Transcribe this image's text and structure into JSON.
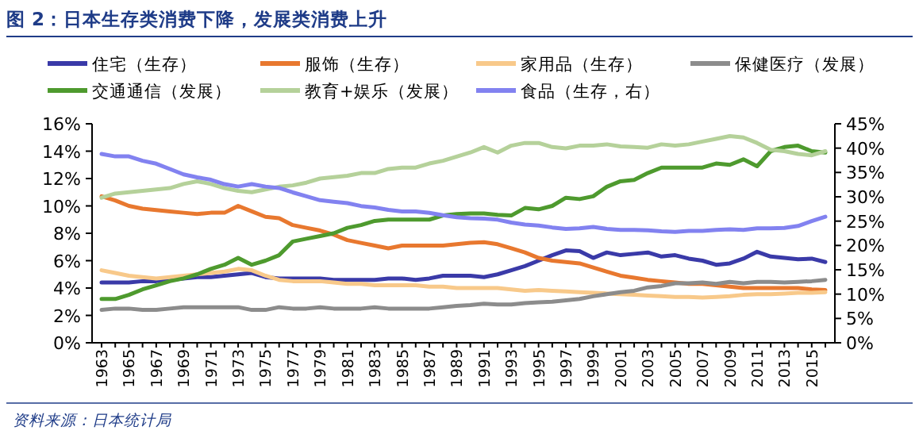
{
  "chart_data": {
    "type": "line",
    "title": "图 2：日本生存类消费下降，发展类消费上升",
    "annotations": [
      "资料来源：日本统计局"
    ],
    "categories": [
      "1963",
      null,
      "1965",
      null,
      "1967",
      null,
      "1969",
      null,
      "1971",
      null,
      "1973",
      null,
      "1975",
      null,
      "1977",
      null,
      "1979",
      null,
      "1981",
      null,
      "1983",
      null,
      "1985",
      null,
      "1987",
      null,
      "1989",
      null,
      "1991",
      null,
      "1993",
      null,
      "1995",
      null,
      "1997",
      null,
      "1999",
      null,
      "2001",
      null,
      "2003",
      null,
      "2005",
      null,
      "2007",
      null,
      "2009",
      null,
      "2011",
      null,
      "2013",
      null,
      "2015",
      null
    ],
    "ylim": [
      0,
      16
    ],
    "yticks": [
      {
        "value": 0,
        "label": "0%"
      },
      {
        "value": 2,
        "label": "2%"
      },
      {
        "value": 4,
        "label": "4%"
      },
      {
        "value": 6,
        "label": "6%"
      },
      {
        "value": 8,
        "label": "8%"
      },
      {
        "value": 10,
        "label": "10%"
      },
      {
        "value": 12,
        "label": "12%"
      },
      {
        "value": 14,
        "label": "14%"
      },
      {
        "value": 16,
        "label": "16%"
      }
    ],
    "y2lim": [
      0,
      45
    ],
    "y2ticks": [
      {
        "value": 0,
        "label": "0%"
      },
      {
        "value": 5,
        "label": "5%"
      },
      {
        "value": 10,
        "label": "10%"
      },
      {
        "value": 15,
        "label": "15%"
      },
      {
        "value": 20,
        "label": "20%"
      },
      {
        "value": 25,
        "label": "25%"
      },
      {
        "value": 30,
        "label": "30%"
      },
      {
        "value": 35,
        "label": "35%"
      },
      {
        "value": 40,
        "label": "40%"
      },
      {
        "value": 45,
        "label": "45%"
      }
    ],
    "legend": "top",
    "grid": false,
    "line_style": "solid",
    "marker": "none",
    "series": [
      {
        "name": "住宅（生存）",
        "color": "#3a3aa8",
        "values": [
          4.4,
          4.4,
          4.4,
          4.5,
          4.5,
          4.6,
          4.7,
          4.8,
          4.8,
          4.9,
          5.0,
          5.1,
          4.8,
          4.7,
          4.7,
          4.7,
          4.7,
          4.6,
          4.6,
          4.6,
          4.6,
          4.7,
          4.7,
          4.6,
          4.7,
          4.9,
          4.9,
          4.9,
          4.8,
          5.0,
          5.3,
          5.6,
          6.0,
          6.4,
          6.75,
          6.7,
          6.2,
          6.6,
          6.4,
          6.5,
          6.6,
          6.3,
          6.4,
          6.15,
          6.0,
          5.7,
          5.8,
          6.15,
          6.65,
          6.3,
          6.2,
          6.1,
          6.15,
          5.9
        ]
      },
      {
        "name": "服饰（生存）",
        "color": "#e8782f",
        "values": [
          10.7,
          10.4,
          10.0,
          9.8,
          9.7,
          9.6,
          9.5,
          9.4,
          9.5,
          9.5,
          10.0,
          9.6,
          9.2,
          9.1,
          8.6,
          8.4,
          8.2,
          7.9,
          7.5,
          7.3,
          7.1,
          6.9,
          7.1,
          7.1,
          7.1,
          7.1,
          7.2,
          7.3,
          7.35,
          7.2,
          6.9,
          6.6,
          6.2,
          6.0,
          5.9,
          5.8,
          5.5,
          5.2,
          4.9,
          4.75,
          4.6,
          4.5,
          4.4,
          4.3,
          4.3,
          4.2,
          4.1,
          4.0,
          4.0,
          4.0,
          4.0,
          4.0,
          3.9,
          3.85
        ]
      },
      {
        "name": "家用品（生存）",
        "color": "#f8c98a",
        "values": [
          5.3,
          5.1,
          4.9,
          4.8,
          4.7,
          4.8,
          4.9,
          5.0,
          5.1,
          5.2,
          5.4,
          5.3,
          4.9,
          4.6,
          4.5,
          4.5,
          4.5,
          4.4,
          4.3,
          4.3,
          4.2,
          4.2,
          4.2,
          4.2,
          4.1,
          4.1,
          4.0,
          4.0,
          4.0,
          4.0,
          3.9,
          3.8,
          3.85,
          3.8,
          3.75,
          3.7,
          3.65,
          3.6,
          3.55,
          3.5,
          3.45,
          3.4,
          3.35,
          3.35,
          3.3,
          3.35,
          3.4,
          3.5,
          3.55,
          3.55,
          3.6,
          3.65,
          3.65,
          3.7
        ]
      },
      {
        "name": "保健医疗（发展）",
        "color": "#8c8c8c",
        "values": [
          2.4,
          2.5,
          2.5,
          2.4,
          2.4,
          2.5,
          2.6,
          2.6,
          2.6,
          2.6,
          2.6,
          2.4,
          2.4,
          2.6,
          2.5,
          2.5,
          2.6,
          2.5,
          2.5,
          2.5,
          2.6,
          2.5,
          2.5,
          2.5,
          2.5,
          2.6,
          2.7,
          2.75,
          2.85,
          2.8,
          2.8,
          2.9,
          2.95,
          3.0,
          3.1,
          3.2,
          3.4,
          3.55,
          3.7,
          3.8,
          4.05,
          4.15,
          4.35,
          4.35,
          4.4,
          4.3,
          4.45,
          4.35,
          4.45,
          4.45,
          4.4,
          4.45,
          4.5,
          4.6
        ]
      },
      {
        "name": "交通通信（发展）",
        "color": "#4e9a2e",
        "values": [
          3.2,
          3.2,
          3.5,
          3.9,
          4.2,
          4.5,
          4.7,
          5.0,
          5.4,
          5.7,
          6.2,
          5.7,
          6.0,
          6.4,
          7.4,
          7.6,
          7.8,
          8.0,
          8.4,
          8.6,
          8.9,
          9.0,
          9.0,
          9.0,
          9.0,
          9.3,
          9.4,
          9.45,
          9.45,
          9.35,
          9.3,
          9.85,
          9.75,
          10.0,
          10.6,
          10.5,
          10.7,
          11.4,
          11.8,
          11.9,
          12.4,
          12.8,
          12.8,
          12.8,
          12.8,
          13.1,
          13.0,
          13.4,
          12.9,
          14.0,
          14.3,
          14.4,
          14.0,
          13.9
        ]
      },
      {
        "name": "教育+娱乐（发展）",
        "color": "#b5d19a",
        "values": [
          10.6,
          10.9,
          11.0,
          11.1,
          11.2,
          11.3,
          11.6,
          11.8,
          11.6,
          11.3,
          11.1,
          11.0,
          11.2,
          11.4,
          11.5,
          11.7,
          12.0,
          12.1,
          12.2,
          12.4,
          12.4,
          12.7,
          12.8,
          12.8,
          13.1,
          13.3,
          13.6,
          13.9,
          14.3,
          13.9,
          14.4,
          14.6,
          14.6,
          14.3,
          14.2,
          14.4,
          14.4,
          14.5,
          14.35,
          14.3,
          14.25,
          14.5,
          14.4,
          14.5,
          14.7,
          14.9,
          15.1,
          15.0,
          14.6,
          14.1,
          14.0,
          13.8,
          13.7,
          14.0
        ]
      },
      {
        "name": "食品（生存，右）",
        "color": "#8282f0",
        "axis": "y2",
        "values": [
          38.8,
          38.3,
          38.3,
          37.4,
          36.8,
          35.7,
          34.6,
          34.0,
          33.5,
          32.6,
          32.1,
          32.6,
          32.1,
          31.8,
          30.9,
          30.1,
          29.3,
          29.0,
          28.7,
          28.1,
          27.8,
          27.3,
          27.0,
          27.0,
          26.7,
          26.2,
          25.8,
          25.6,
          25.5,
          25.3,
          24.7,
          24.3,
          24.1,
          23.7,
          23.4,
          23.5,
          23.8,
          23.4,
          23.2,
          23.2,
          23.1,
          22.9,
          22.8,
          23.0,
          23.0,
          23.2,
          23.3,
          23.2,
          23.5,
          23.5,
          23.6,
          24.0,
          25.0,
          25.9
        ]
      }
    ]
  }
}
